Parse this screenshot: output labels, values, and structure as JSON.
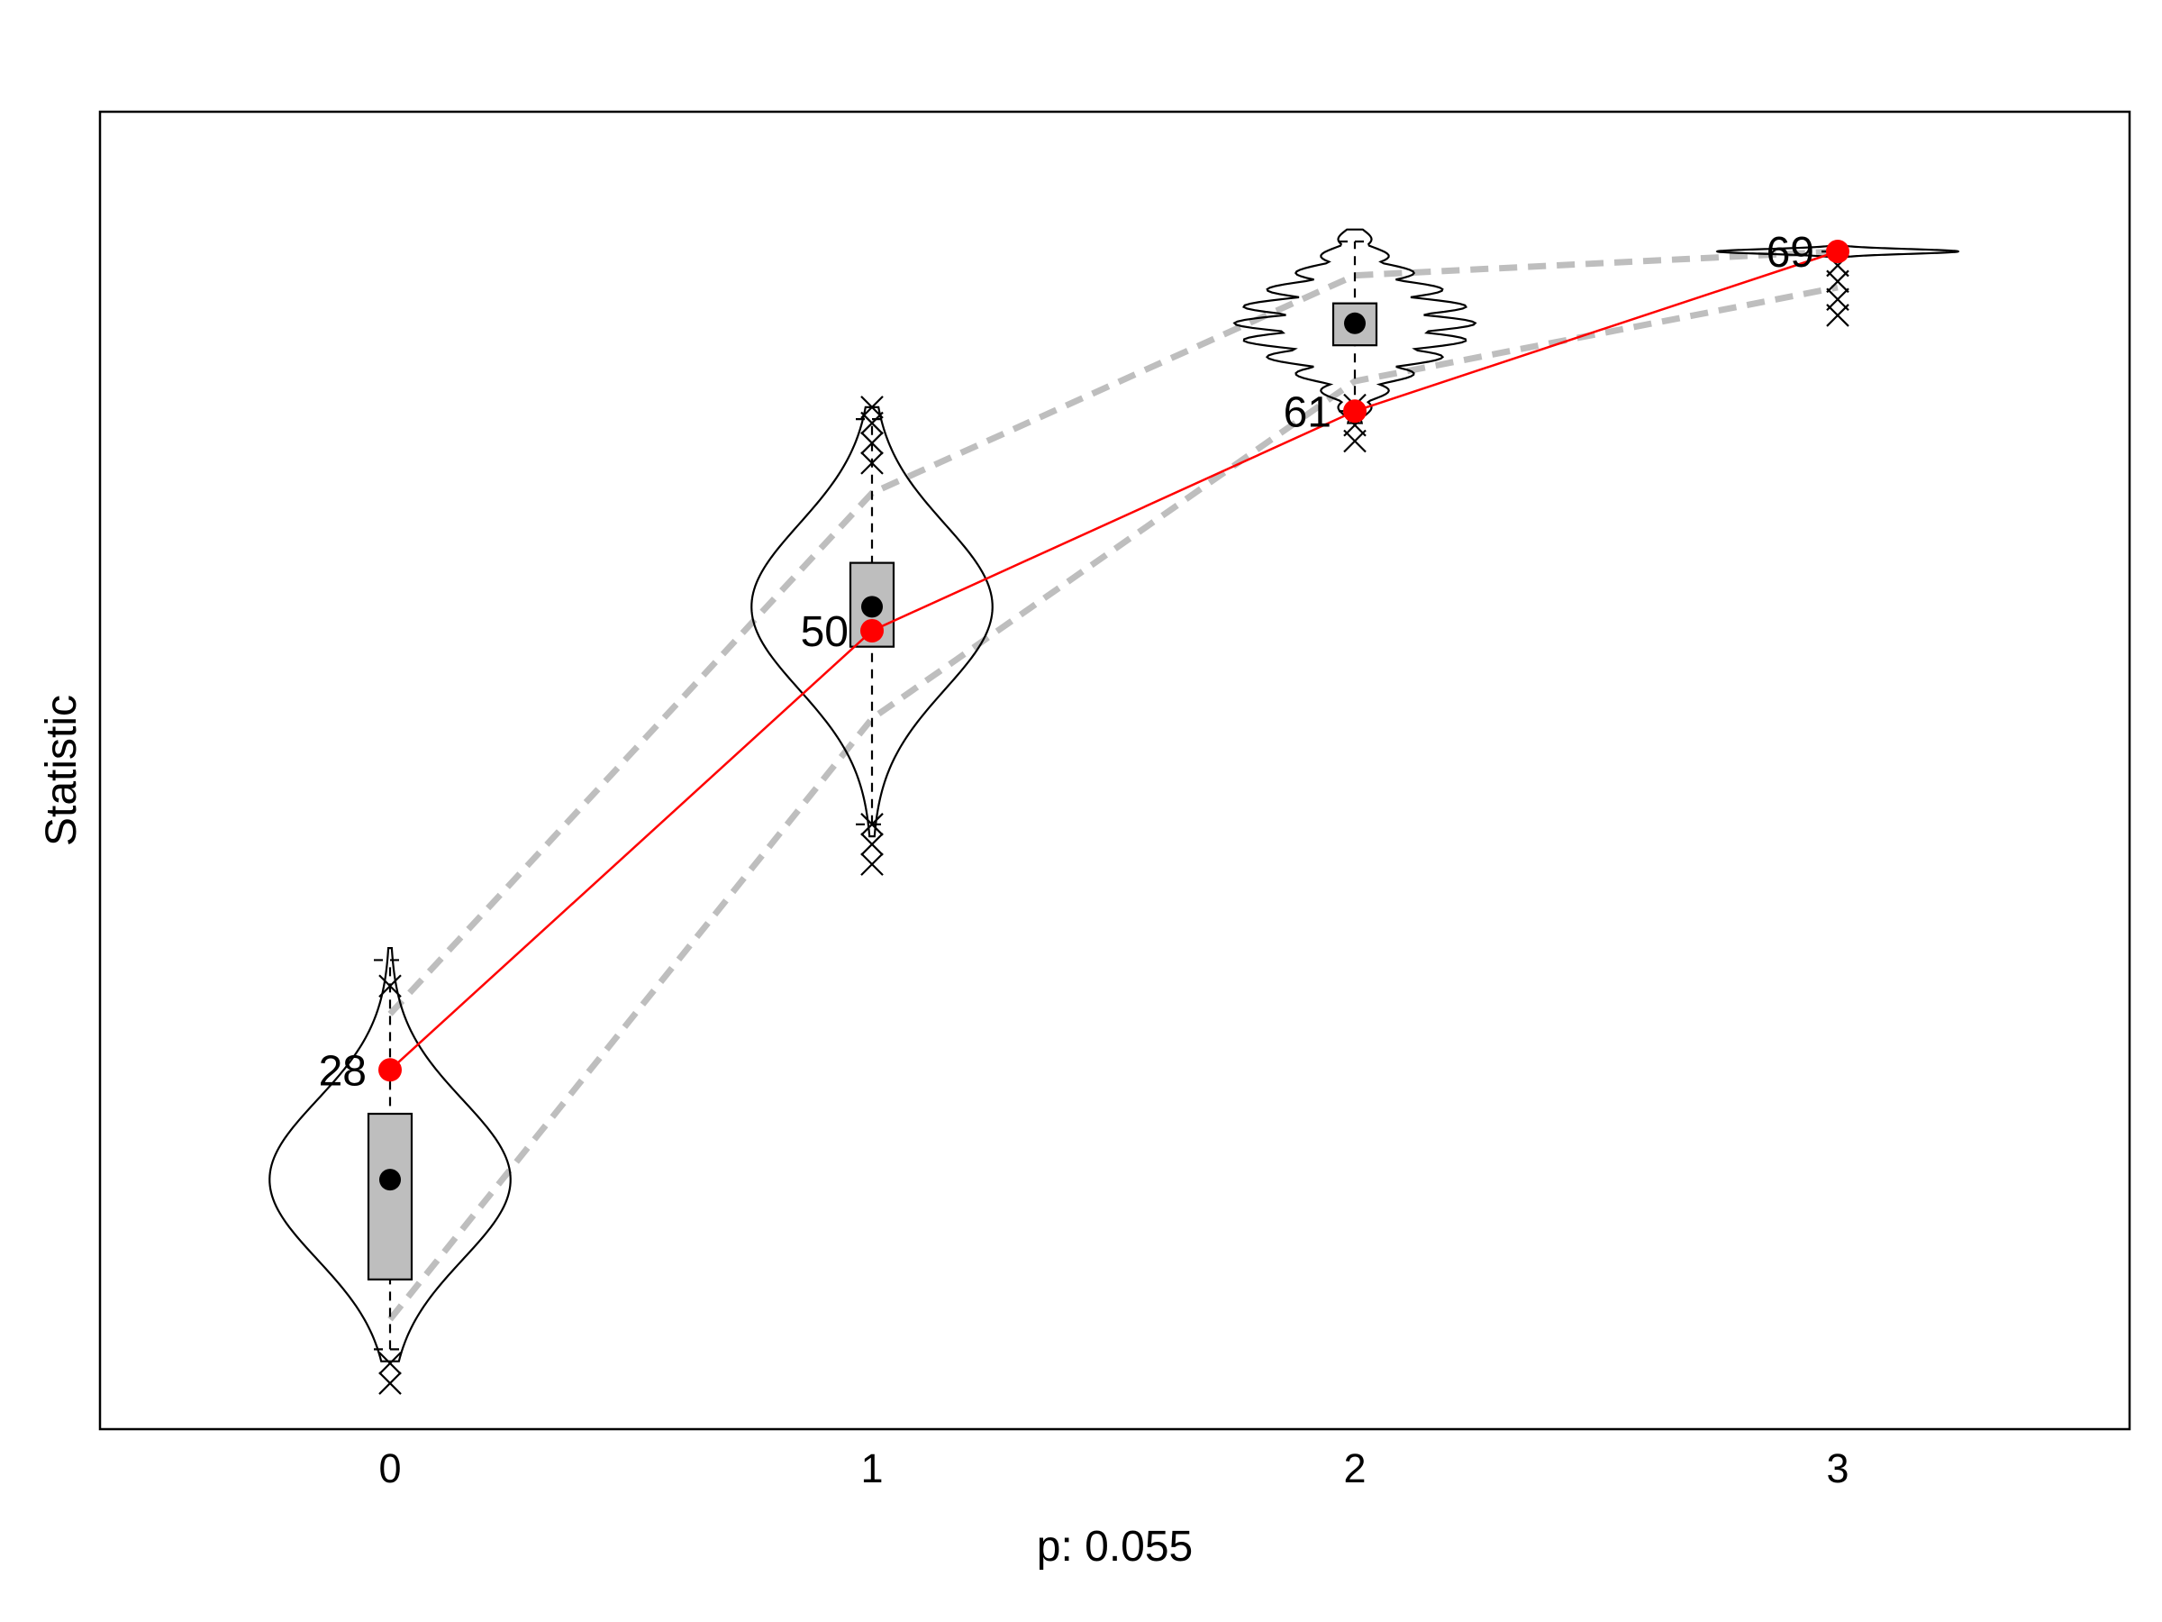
{
  "chart_data": {
    "type": "violin",
    "title": "",
    "xlabel": "p: 0.055",
    "ylabel": "Statistic",
    "categories": [
      "0",
      "1",
      "2",
      "3"
    ],
    "ylim": [
      10,
      76
    ],
    "grid": false,
    "highlight_series": {
      "color": "#ff0000",
      "values": [
        28,
        50,
        61,
        69
      ],
      "labels": [
        "28",
        "50",
        "61",
        "69"
      ]
    },
    "groups": [
      {
        "x": "0",
        "median": 22.5,
        "q1": 17.5,
        "q3": 25.8,
        "whisker_low": 14,
        "whisker_high": 33.5,
        "violin_max_halfwidth": 0.25,
        "violin_center": 22.5,
        "band_low": 15.5,
        "band_high": 30.8,
        "outliers": [
          12.3,
          13.3,
          32.2
        ]
      },
      {
        "x": "1",
        "median": 51.2,
        "q1": 49.2,
        "q3": 53.4,
        "whisker_low": 40.3,
        "whisker_high": 60.6,
        "violin_max_halfwidth": 0.25,
        "violin_center": 51.2,
        "band_low": 45.6,
        "band_high": 56.9,
        "outliers": [
          38.3,
          39.3,
          40.3,
          58.4,
          59.4,
          60.4,
          61.2
        ]
      },
      {
        "x": "2",
        "median": 65.4,
        "q1": 64.3,
        "q3": 66.4,
        "whisker_low": 61,
        "whisker_high": 69.5,
        "violin_max_halfwidth": 0.25,
        "violin_center": 65.4,
        "band_low": 62.5,
        "band_high": 67.8,
        "outliers": [
          59.5,
          60.3,
          61.3
        ]
      },
      {
        "x": "3",
        "median": 69,
        "q1": 69,
        "q3": 69,
        "whisker_low": 69,
        "whisker_high": 69,
        "violin_max_halfwidth": 0.25,
        "violin_center": 69,
        "band_low": 67.2,
        "band_high": 69,
        "outliers": [
          65.8,
          66.6,
          67.5,
          68.3
        ]
      }
    ]
  },
  "colors": {
    "highlight": "#ff0000",
    "box_fill": "#bebebe",
    "band": "#bebebe",
    "ink": "#000000"
  }
}
